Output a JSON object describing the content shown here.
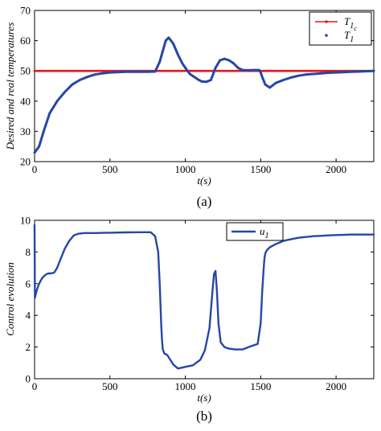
{
  "panels": [
    {
      "caption": "(a)",
      "chart_data": {
        "type": "line",
        "title": "",
        "xlabel": "t(s)",
        "ylabel": "Desired and real temperatures",
        "xlim": [
          0,
          2250
        ],
        "ylim": [
          20,
          70
        ],
        "xticks": [
          "0",
          "500",
          "1000",
          "1500",
          "2000"
        ],
        "yticks": [
          "20",
          "30",
          "40",
          "50",
          "60",
          "70"
        ],
        "grid": false,
        "legend_position": "top-right",
        "series": [
          {
            "name": "T1c",
            "legend_main": "T",
            "legend_sub": "1",
            "legend_subsub": "c",
            "color": "#e8161b",
            "marker": "dot-line",
            "x": [
              0,
              2250
            ],
            "y": [
              50,
              50
            ]
          },
          {
            "name": "T1",
            "legend_main": "T",
            "legend_sub": "1",
            "color": "#2746a6",
            "marker": "dots",
            "x": [
              0,
              30,
              60,
              100,
              150,
              200,
              250,
              300,
              350,
              400,
              450,
              500,
              550,
              600,
              650,
              700,
              750,
              800,
              830,
              850,
              870,
              890,
              920,
              950,
              980,
              1000,
              1030,
              1060,
              1090,
              1110,
              1140,
              1170,
              1200,
              1230,
              1260,
              1290,
              1320,
              1350,
              1380,
              1420,
              1460,
              1490,
              1500,
              1510,
              1530,
              1560,
              1600,
              1650,
              1700,
              1750,
              1800,
              1850,
              1900,
              1950,
              2000,
              2050,
              2100,
              2150,
              2200,
              2250
            ],
            "y": [
              23,
              25,
              30,
              36,
              40,
              43,
              45.5,
              47,
              48,
              48.8,
              49.2,
              49.5,
              49.6,
              49.7,
              49.7,
              49.7,
              49.7,
              49.8,
              53,
              56.5,
              60,
              61,
              59,
              55.5,
              52.5,
              51,
              49,
              48,
              47,
              46.5,
              46.4,
              47,
              51,
              53.5,
              54,
              53.5,
              52.5,
              51,
              50.3,
              50.2,
              50.3,
              50.3,
              49.5,
              48,
              45.5,
              44.5,
              46,
              47,
              47.8,
              48.4,
              48.8,
              49,
              49.2,
              49.4,
              49.5,
              49.6,
              49.7,
              49.8,
              49.9,
              50
            ]
          }
        ]
      }
    },
    {
      "caption": "(b)",
      "chart_data": {
        "type": "line",
        "title": "",
        "xlabel": "t(s)",
        "ylabel": "Control evolution",
        "xlim": [
          0,
          2250
        ],
        "ylim": [
          0,
          10
        ],
        "xticks": [
          "0",
          "500",
          "1000",
          "1500",
          "2000"
        ],
        "yticks": [
          "0",
          "2",
          "4",
          "6",
          "8",
          "10"
        ],
        "grid": false,
        "legend_position": "top-center",
        "series": [
          {
            "name": "u1",
            "legend_main": "u",
            "legend_sub": "1",
            "color": "#2746a6",
            "marker": "line",
            "x": [
              0,
              2,
              5,
              15,
              30,
              50,
              70,
              90,
              110,
              130,
              150,
              170,
              200,
              230,
              260,
              290,
              330,
              400,
              500,
              600,
              700,
              770,
              800,
              820,
              830,
              840,
              845,
              850,
              860,
              880,
              900,
              920,
              950,
              980,
              1000,
              1050,
              1100,
              1130,
              1160,
              1180,
              1190,
              1200,
              1210,
              1220,
              1235,
              1260,
              1290,
              1330,
              1380,
              1420,
              1450,
              1480,
              1500,
              1510,
              1520,
              1525,
              1530,
              1540,
              1560,
              1600,
              1650,
              1700,
              1750,
              1800,
              1850,
              1900,
              1950,
              2000,
              2050,
              2100,
              2150,
              2200,
              2250
            ],
            "y": [
              9.7,
              5.1,
              5.2,
              5.6,
              6.0,
              6.35,
              6.55,
              6.65,
              6.65,
              6.7,
              7.0,
              7.5,
              8.2,
              8.7,
              9.05,
              9.15,
              9.2,
              9.2,
              9.22,
              9.24,
              9.25,
              9.25,
              9.0,
              8.0,
              6.0,
              3.5,
              2.5,
              1.9,
              1.6,
              1.5,
              1.2,
              0.9,
              0.65,
              0.7,
              0.75,
              0.85,
              1.2,
              1.8,
              3.2,
              5.5,
              6.6,
              6.8,
              5.5,
              3.5,
              2.3,
              2.0,
              1.9,
              1.85,
              1.85,
              2.0,
              2.1,
              2.2,
              3.5,
              5.5,
              7.0,
              7.6,
              7.9,
              8.1,
              8.3,
              8.5,
              8.7,
              8.8,
              8.9,
              8.95,
              9.0,
              9.02,
              9.05,
              9.07,
              9.08,
              9.1,
              9.1,
              9.1,
              9.1
            ]
          }
        ]
      }
    }
  ]
}
